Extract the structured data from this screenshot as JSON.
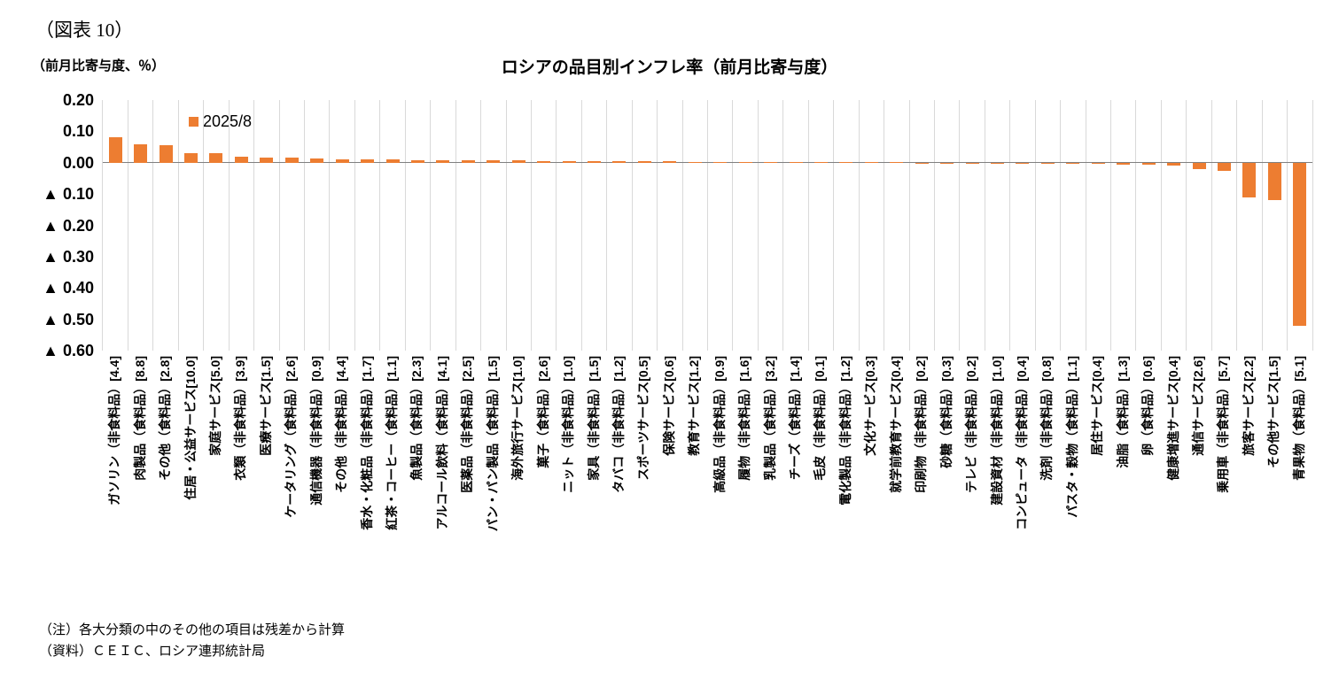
{
  "figure_label": "（図表 10）",
  "notes": [
    "（注）各大分類の中のその他の項目は残差から計算",
    "（資料）ＣＥＩＣ、ロシア連邦統計局"
  ],
  "chart_data": {
    "type": "bar",
    "title": "ロシアの品目別インフレ率（前月比寄与度）",
    "ylabel": "（前月比寄与度、％）",
    "legend": [
      "2025/8"
    ],
    "legend_position": "top-left-inside",
    "bar_color": "#ED7D31",
    "grid": "vertical-only",
    "ylim": [
      -0.6,
      0.2
    ],
    "ytick_interval": 0.1,
    "ytick_labels": [
      "0.20",
      "0.10",
      "0.00",
      "▲ 0.10",
      "▲ 0.20",
      "▲ 0.30",
      "▲ 0.40",
      "▲ 0.50",
      "▲ 0.60"
    ],
    "categories": [
      "ガソリン（非食料品）[4.4]",
      "肉製品（食料品）[8.8]",
      "その他（食料品）[2.8]",
      "住居・公益サービス[10.0]",
      "家庭サービス[5.0]",
      "衣類（非食料品）[3.9]",
      "医療サービス[1.5]",
      "ケータリング（食料品）[2.6]",
      "通信機器（非食料品）[0.9]",
      "その他（非食料品）[4.4]",
      "香水・化粧品（非食料品）[1.7]",
      "紅茶・コーヒー（食料品）[1.1]",
      "魚製品（食料品）[2.3]",
      "アルコール飲料（食料品）[4.1]",
      "医薬品（非食料品）[2.5]",
      "パン・パン製品（食料品）[1.5]",
      "海外旅行サービス[1.0]",
      "菓子（食料品）[2.6]",
      "ニット（非食料品）[1.0]",
      "家具（非食料品）[1.5]",
      "タバコ（非食料品）[1.2]",
      "スポーツサービス[0.5]",
      "保険サービス[0.6]",
      "教育サービス[1.2]",
      "高級品（非食料品）[0.9]",
      "履物（非食料品）[1.6]",
      "乳製品（食料品）[3.2]",
      "チーズ（食料品）[1.4]",
      "毛皮（非食料品）[0.1]",
      "電化製品（非食料品）[1.2]",
      "文化サービス[0.3]",
      "就学前教育サービス[0.4]",
      "印刷物（非食料品）[0.2]",
      "砂糖（食料品）[0.3]",
      "テレビ（非食料品）[0.2]",
      "建設資材（非食料品）[1.0]",
      "コンピュータ（非食料品）[0.4]",
      "洗剤（非食料品）[0.8]",
      "パスタ・穀物（食料品）[1.1]",
      "居住サービス[0.4]",
      "油脂（食料品）[1.3]",
      "卵（食料品）[0.6]",
      "健康増進サービス[0.4]",
      "通信サービス[2.6]",
      "乗用車（非食料品）[5.7]",
      "旅客サービス[2.2]",
      "その他サービス[1.5]",
      "青果物（食料品）[5.1]"
    ],
    "values": [
      0.08,
      0.06,
      0.055,
      0.03,
      0.03,
      0.02,
      0.016,
      0.015,
      0.013,
      0.012,
      0.011,
      0.01,
      0.009,
      0.009,
      0.008,
      0.008,
      0.007,
      0.006,
      0.006,
      0.005,
      0.005,
      0.004,
      0.004,
      0.003,
      0.003,
      0.003,
      0.002,
      0.002,
      0.002,
      0.001,
      0.001,
      0.001,
      0.0005,
      0.0005,
      0.0003,
      -0.001,
      -0.002,
      -0.003,
      -0.003,
      -0.004,
      -0.005,
      -0.006,
      -0.008,
      -0.02,
      -0.025,
      -0.11,
      -0.12,
      -0.52
    ]
  }
}
